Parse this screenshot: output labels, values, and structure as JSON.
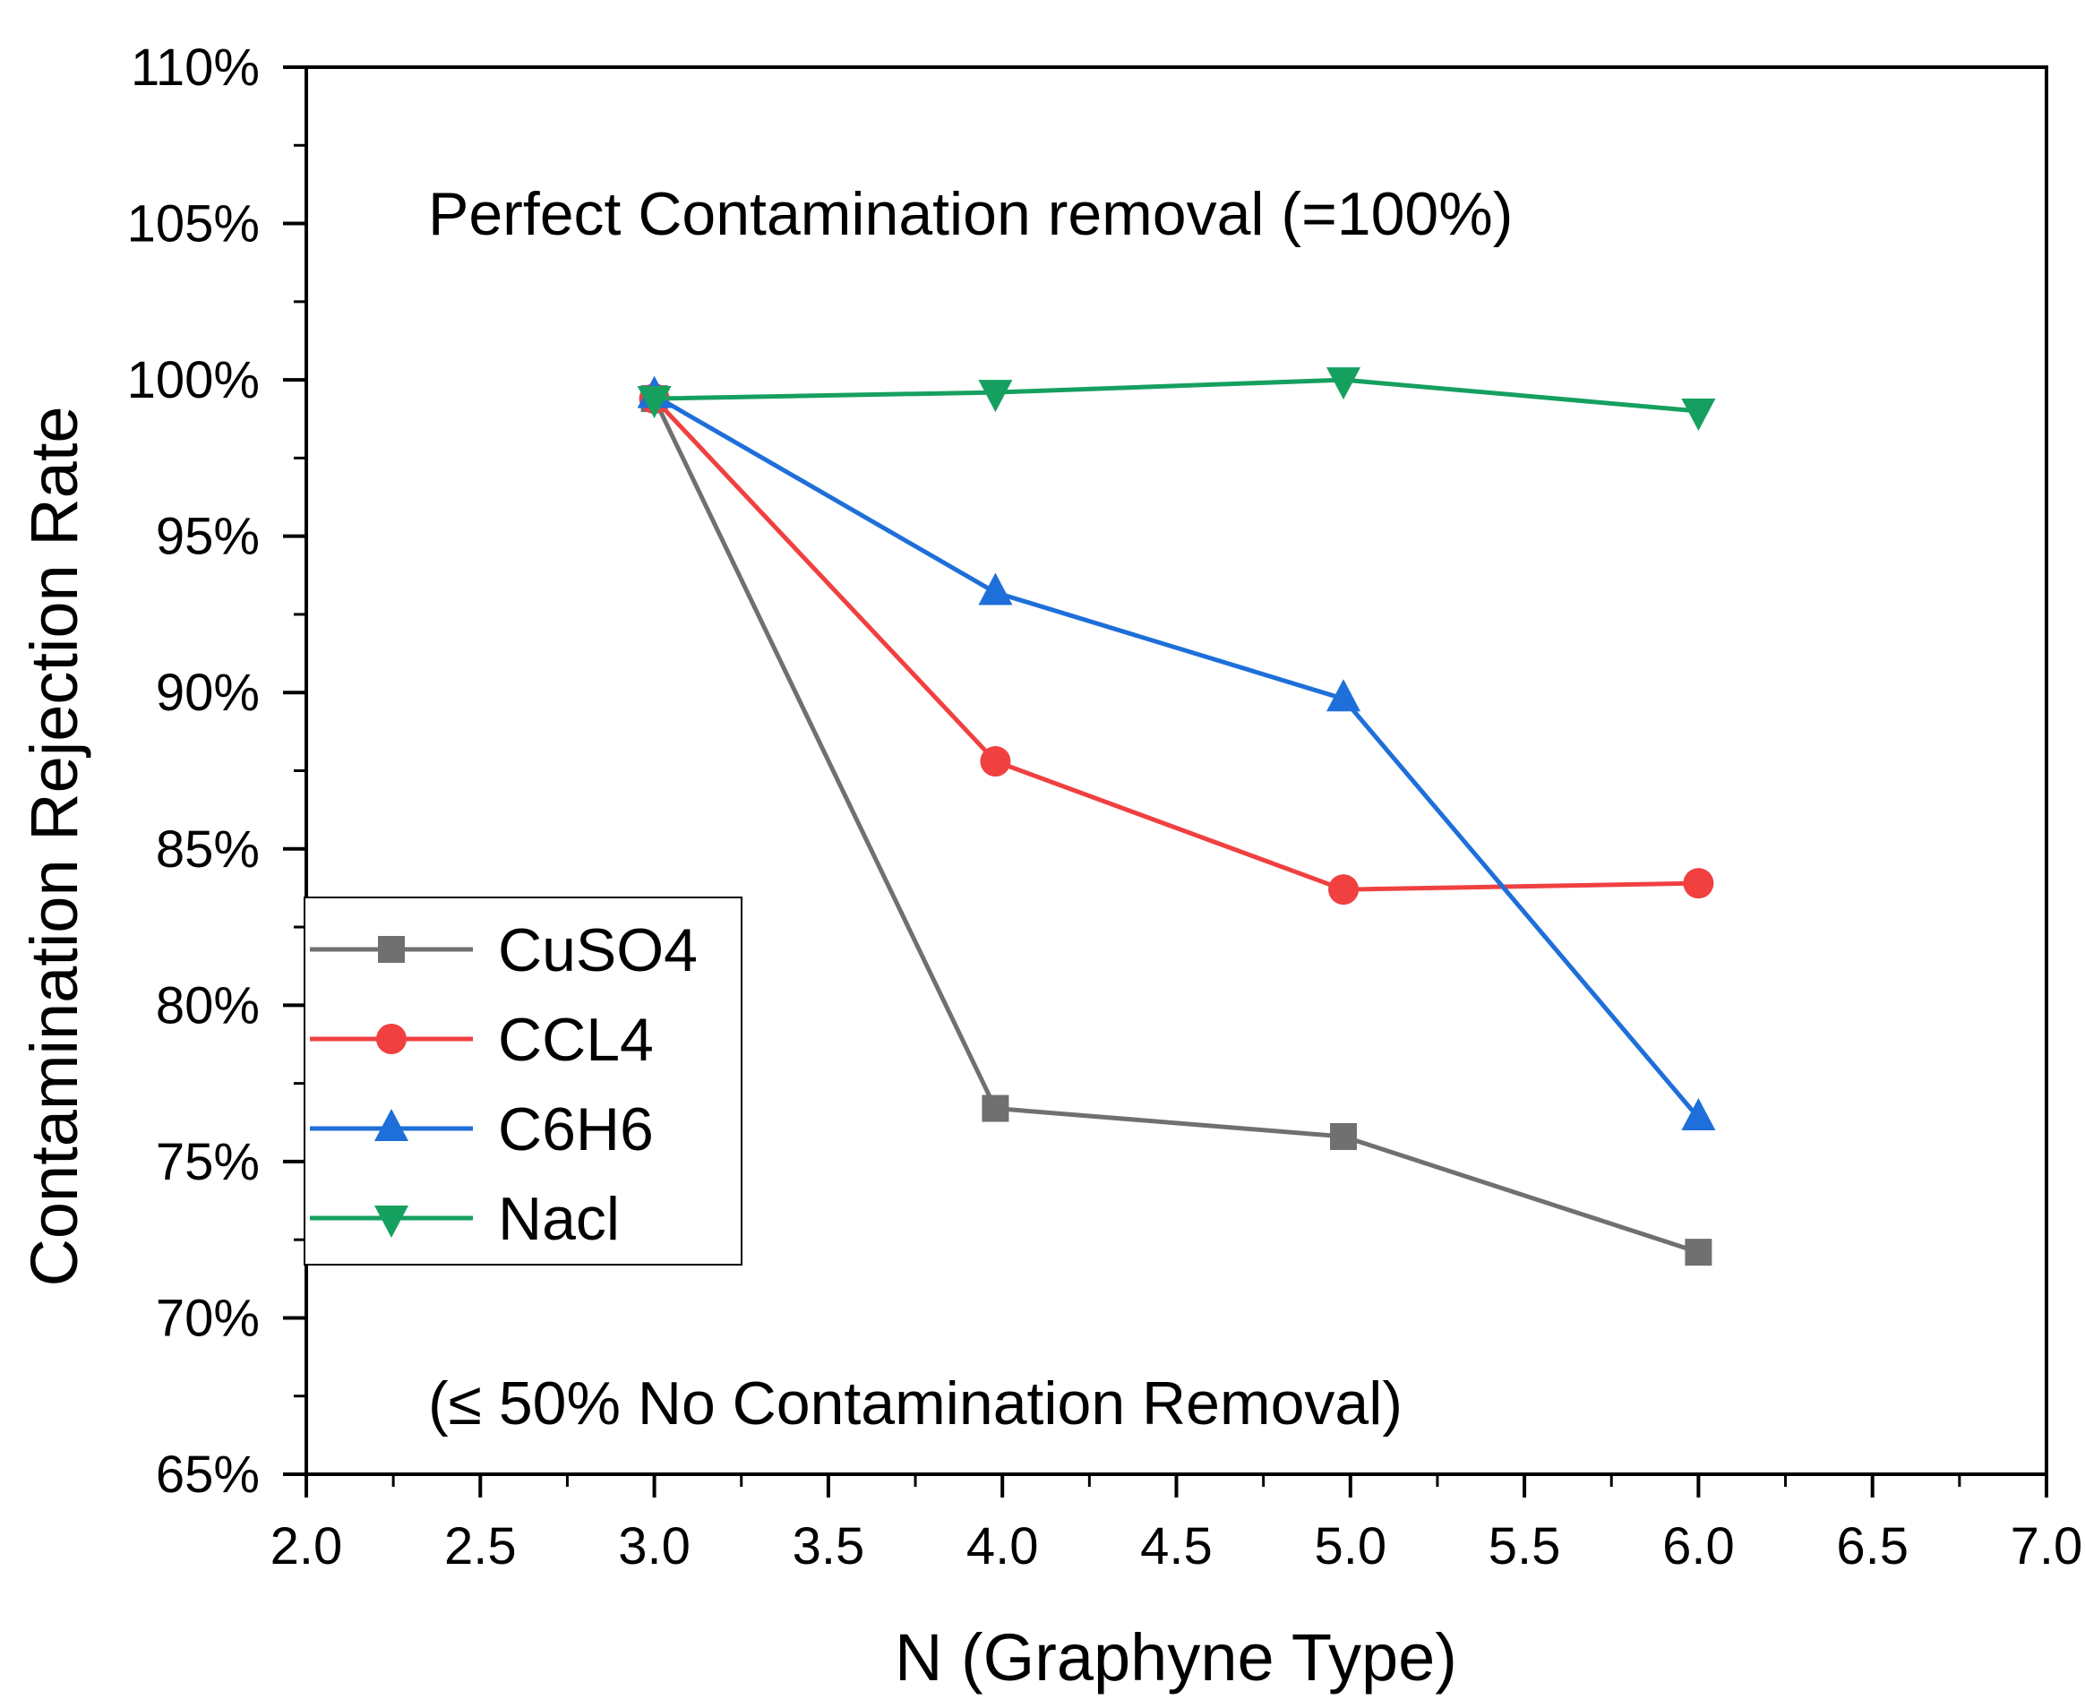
{
  "chart_data": {
    "type": "line",
    "title": "",
    "xlabel": "N (Graphyne Type)",
    "ylabel": "Contamination Rejection Rate",
    "xlim": [
      2.0,
      7.0
    ],
    "ylim": [
      0.65,
      1.1
    ],
    "x_ticks": [
      "2.0",
      "2.5",
      "3.0",
      "3.5",
      "4.0",
      "4.5",
      "5.0",
      "5.5",
      "6.0",
      "6.5",
      "7.0"
    ],
    "y_ticks": [
      "65%",
      "70%",
      "75%",
      "80%",
      "85%",
      "90%",
      "95%",
      "100%",
      "105%",
      "110%"
    ],
    "annotations": {
      "top": "Perfect Contamination removal (=100%)",
      "bottom": "(≤ 50% No Contamination Removal)"
    },
    "legend_position": "lower-left",
    "series": [
      {
        "name": "CuSO4",
        "color": "#707070",
        "marker": "square",
        "x": [
          3.0,
          3.98,
          4.98,
          6.0
        ],
        "y": [
          0.994,
          0.767,
          0.758,
          0.721
        ]
      },
      {
        "name": "CCL4",
        "color": "#f04040",
        "marker": "circle",
        "x": [
          3.0,
          3.98,
          4.98,
          6.0
        ],
        "y": [
          0.994,
          0.878,
          0.837,
          0.839
        ]
      },
      {
        "name": "C6H6",
        "color": "#1e6fd9",
        "marker": "triangle-up",
        "x": [
          3.0,
          3.98,
          4.98,
          6.0
        ],
        "y": [
          0.995,
          0.932,
          0.898,
          0.764
        ]
      },
      {
        "name": "Nacl",
        "color": "#16a060",
        "marker": "triangle-down",
        "x": [
          3.0,
          3.98,
          4.98,
          6.0
        ],
        "y": [
          0.994,
          0.996,
          1.0,
          0.99
        ]
      }
    ]
  }
}
